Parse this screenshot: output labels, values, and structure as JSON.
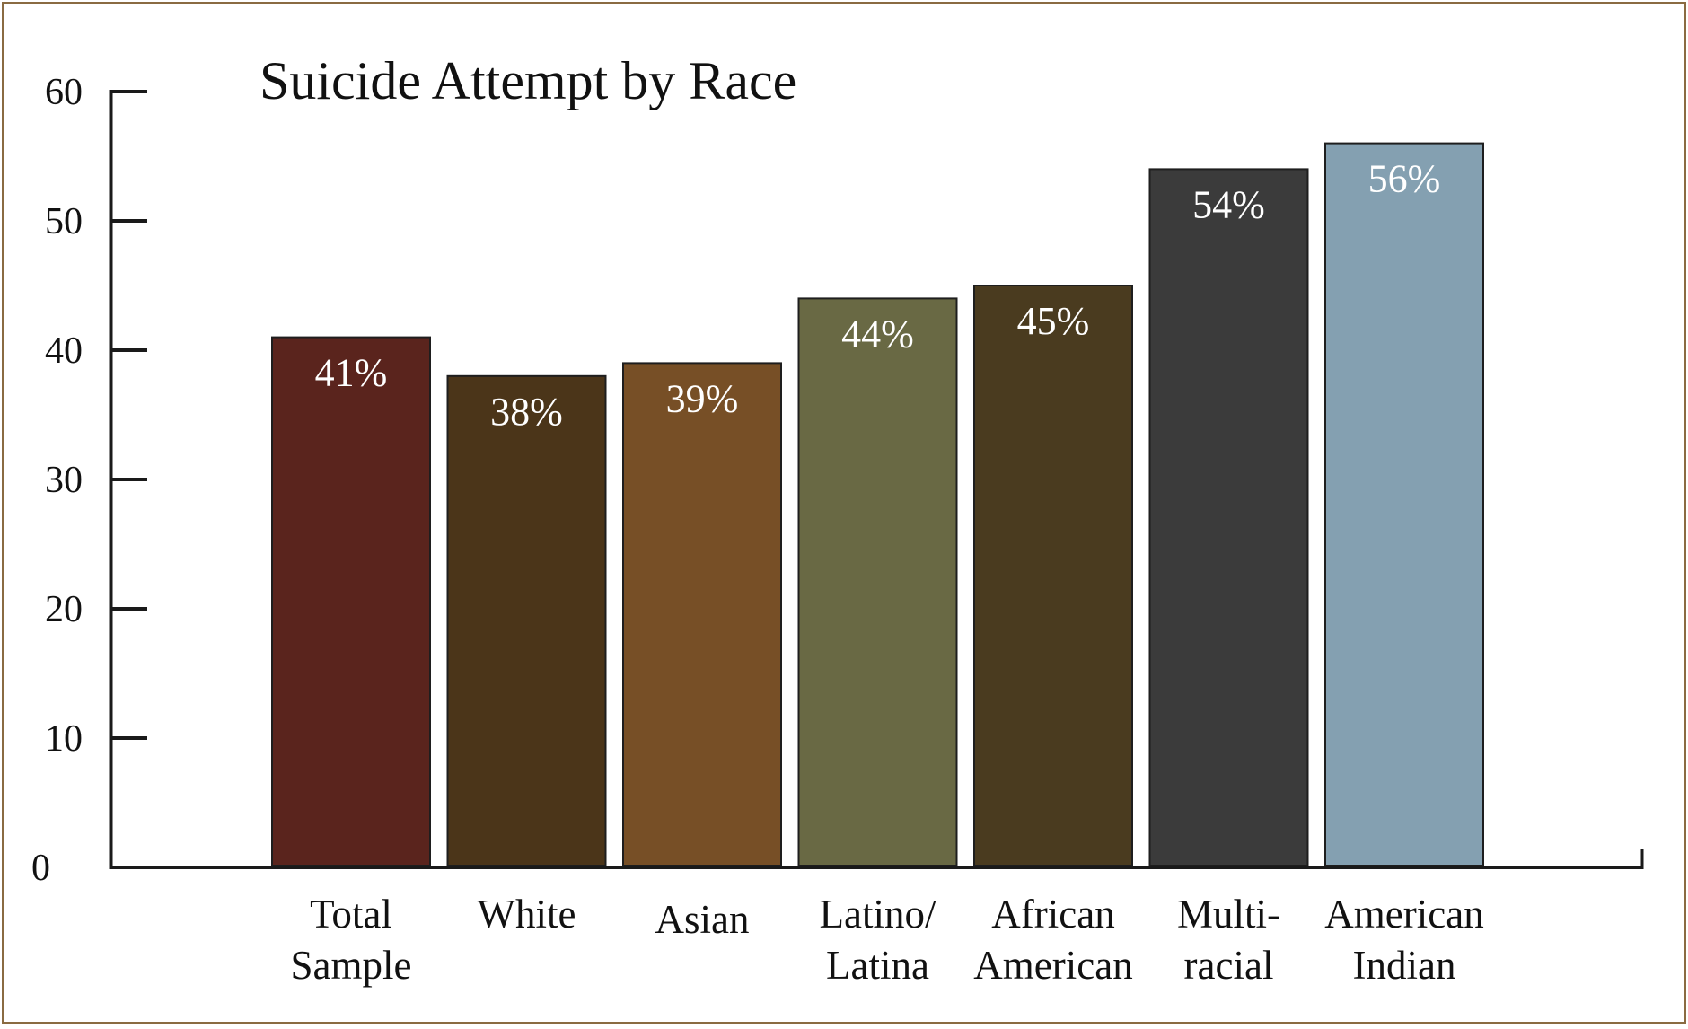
{
  "chart_data": {
    "type": "bar",
    "title": "Suicide Attempt by Race",
    "xlabel": "",
    "ylabel": "",
    "ylim": [
      0,
      60
    ],
    "yticks": [
      "0",
      "10",
      "20",
      "30",
      "40",
      "50",
      "60"
    ],
    "grid": false,
    "categories": [
      [
        "Total",
        "Sample"
      ],
      [
        "White"
      ],
      [
        "Asian"
      ],
      [
        "Latino/",
        "Latina"
      ],
      [
        "African",
        "American"
      ],
      [
        "Multi-",
        "racial"
      ],
      [
        "American",
        "Indian"
      ]
    ],
    "values": [
      41,
      38,
      39,
      44,
      45,
      54,
      56
    ],
    "data_labels": [
      "41%",
      "38%",
      "39%",
      "44%",
      "45%",
      "54%",
      "56%"
    ],
    "colors": [
      "#5a241d",
      "#4b3519",
      "#774f26",
      "#696944",
      "#4a3b1f",
      "#3b3b3b",
      "#84a0b1"
    ]
  }
}
